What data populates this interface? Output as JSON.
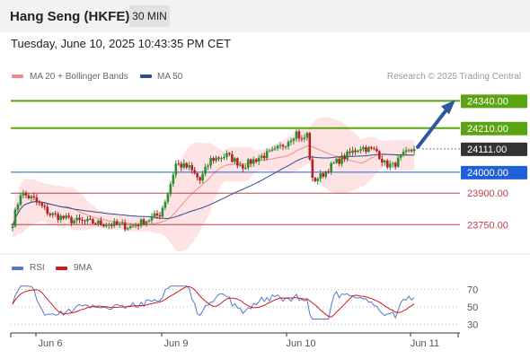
{
  "header": {
    "title": "Hang Seng (HKFE)",
    "timeframe": "30 MIN"
  },
  "datetime": "Tuesday, June 10, 2025 10:43:35 PM CET",
  "legend": {
    "bb_label": "MA 20 + Bollinger Bands",
    "ma50_label": "MA 50",
    "credit": "Research © 2025 Trading Central",
    "rsi_label": "RSI",
    "rsi_ma_label": "9MA"
  },
  "colors": {
    "bb": "#f08a8a",
    "bb_fill": "#fde3e3",
    "ma50": "#2d4f8e",
    "up": "#2e8b2e",
    "down": "#b22222",
    "target": "#5aa412",
    "pivot": "#1f60d8",
    "support": "#c0404a",
    "price": "#333333",
    "rsi": "#5577cc",
    "rsi_ma": "#d11a1a",
    "arrow": "#2e58a0"
  },
  "chart_data": [
    {
      "type": "candlestick",
      "instrument": "Hang Seng (HKFE)",
      "interval": "30 MIN",
      "ylim": [
        23610,
        24410
      ],
      "x_labels": [
        "Jun 6",
        "Jun 9",
        "Jun 10",
        "Jun 11"
      ],
      "levels": [
        {
          "value": 24340,
          "label": "24340.00",
          "style": "target"
        },
        {
          "value": 24210,
          "label": "24210.00",
          "style": "target"
        },
        {
          "value": 24111,
          "label": "24111.00",
          "style": "price"
        },
        {
          "value": 24000,
          "label": "24000.00",
          "style": "pivot"
        },
        {
          "value": 23900,
          "label": "23900.00",
          "style": "support"
        },
        {
          "value": 23750,
          "label": "23750.00",
          "style": "support"
        }
      ],
      "series": [
        {
          "name": "MA 20 + Bollinger Bands"
        },
        {
          "name": "MA 50"
        }
      ],
      "projection": {
        "from": 24111,
        "to": 24340
      }
    },
    {
      "type": "line",
      "title": "RSI",
      "ylim": [
        20,
        80
      ],
      "yticks": [
        70,
        50,
        30
      ],
      "series": [
        {
          "name": "RSI"
        },
        {
          "name": "9MA"
        }
      ]
    }
  ]
}
